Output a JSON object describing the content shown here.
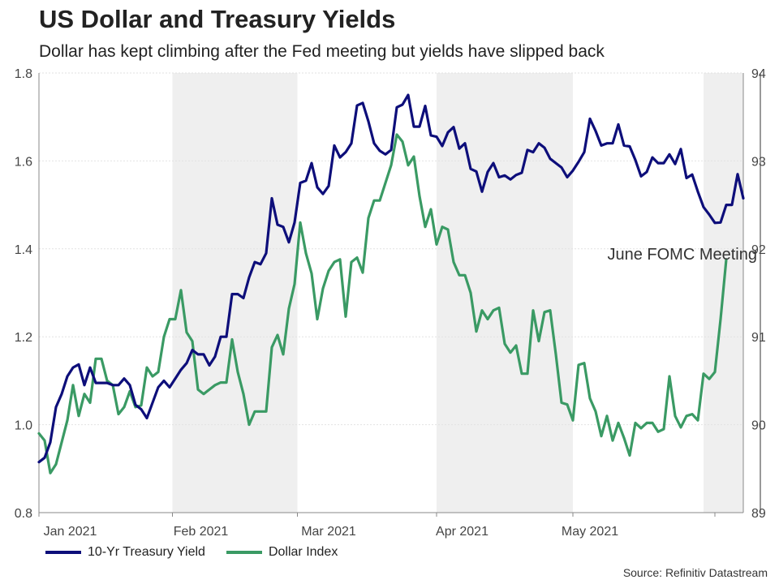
{
  "title": "US Dollar and Treasury Yields",
  "subtitle": "Dollar has kept climbing after the Fed meeting but yields have slipped back",
  "source": "Source: Refinitiv Datastream",
  "colors": {
    "yield": "#0d0e7a",
    "dollar": "#3a9a64",
    "shade": "#efefef",
    "grid": "#e2e2e2"
  },
  "chart_data": {
    "type": "line",
    "title": "US Dollar and Treasury Yields",
    "xlabel": "",
    "ylabel_left": "",
    "ylabel_right": "",
    "x_tick_labels": [
      "Jan 2021",
      "Feb 2021",
      "Mar 2021",
      "Apr 2021",
      "May 2021"
    ],
    "x_tick_positions": [
      5.5,
      28.5,
      51,
      74.5,
      97
    ],
    "month_boundaries": [
      0,
      23.5,
      45.5,
      70,
      94,
      119
    ],
    "shaded_months": [
      [
        23.5,
        45.5
      ],
      [
        70,
        94
      ],
      [
        117,
        129
      ]
    ],
    "ylim_left": [
      0.8,
      1.8
    ],
    "yticks_left": [
      "0.8",
      "1.0",
      "1.2",
      "1.4",
      "1.6",
      "1.8"
    ],
    "ylim_right": [
      89,
      94
    ],
    "yticks_right": [
      "89",
      "90",
      "91",
      "92",
      "93",
      "94"
    ],
    "grid": true,
    "annotation": {
      "text": "June FOMC Meeting",
      "x": 127
    },
    "legend_position": "bottom-left",
    "series": [
      {
        "name": "10-Yr Treasury Yield",
        "axis": "left",
        "values": [
          0.915,
          0.925,
          0.96,
          1.04,
          1.07,
          1.11,
          1.13,
          1.137,
          1.09,
          1.13,
          1.095,
          1.095,
          1.095,
          1.09,
          1.09,
          1.105,
          1.09,
          1.045,
          1.035,
          1.015,
          1.05,
          1.085,
          1.1,
          1.085,
          1.105,
          1.125,
          1.14,
          1.17,
          1.16,
          1.16,
          1.135,
          1.155,
          1.2,
          1.2,
          1.297,
          1.297,
          1.288,
          1.335,
          1.37,
          1.365,
          1.39,
          1.515,
          1.455,
          1.45,
          1.415,
          1.46,
          1.55,
          1.555,
          1.595,
          1.54,
          1.525,
          1.543,
          1.635,
          1.608,
          1.62,
          1.64,
          1.726,
          1.732,
          1.69,
          1.64,
          1.623,
          1.615,
          1.625,
          1.722,
          1.728,
          1.75,
          1.678,
          1.678,
          1.725,
          1.658,
          1.655,
          1.634,
          1.665,
          1.677,
          1.628,
          1.64,
          1.582,
          1.576,
          1.53,
          1.575,
          1.595,
          1.563,
          1.567,
          1.558,
          1.568,
          1.573,
          1.625,
          1.62,
          1.64,
          1.63,
          1.605,
          1.595,
          1.585,
          1.563,
          1.578,
          1.598,
          1.62,
          1.696,
          1.668,
          1.635,
          1.64,
          1.64,
          1.683,
          1.635,
          1.633,
          1.602,
          1.565,
          1.575,
          1.608,
          1.595,
          1.595,
          1.615,
          1.593,
          1.627,
          1.561,
          1.569,
          1.53,
          1.495,
          1.478,
          1.459,
          1.46,
          1.5,
          1.5,
          1.57,
          1.515
        ]
      },
      {
        "name": "Dollar Index",
        "axis": "right",
        "values": [
          89.9,
          89.82,
          89.45,
          89.55,
          89.8,
          90.05,
          90.45,
          90.1,
          90.35,
          90.25,
          90.75,
          90.75,
          90.5,
          90.45,
          90.12,
          90.2,
          90.38,
          90.2,
          90.22,
          90.65,
          90.55,
          90.6,
          91.0,
          91.2,
          91.2,
          91.53,
          91.05,
          90.95,
          90.4,
          90.35,
          90.4,
          90.45,
          90.48,
          90.48,
          90.97,
          90.6,
          90.35,
          90.0,
          90.15,
          90.15,
          90.15,
          90.88,
          91.02,
          90.8,
          91.32,
          91.6,
          92.3,
          91.95,
          91.72,
          91.2,
          91.55,
          91.75,
          91.85,
          91.88,
          91.23,
          91.85,
          91.9,
          91.73,
          92.35,
          92.55,
          92.55,
          92.75,
          92.95,
          93.3,
          93.22,
          92.95,
          93.05,
          92.6,
          92.25,
          92.45,
          92.05,
          92.25,
          92.22,
          91.85,
          91.7,
          91.7,
          91.5,
          91.06,
          91.3,
          91.2,
          91.3,
          91.33,
          90.92,
          90.82,
          90.9,
          90.58,
          90.58,
          91.3,
          90.95,
          91.28,
          91.3,
          90.8,
          90.25,
          90.23,
          90.05,
          90.68,
          90.7,
          90.3,
          90.15,
          89.87,
          90.1,
          89.82,
          90.02,
          89.85,
          89.65,
          90.02,
          89.96,
          90.02,
          90.02,
          89.92,
          89.95,
          90.55,
          90.1,
          89.97,
          90.1,
          90.12,
          90.05,
          90.58,
          90.52,
          90.6,
          91.2,
          91.88
        ]
      }
    ]
  }
}
